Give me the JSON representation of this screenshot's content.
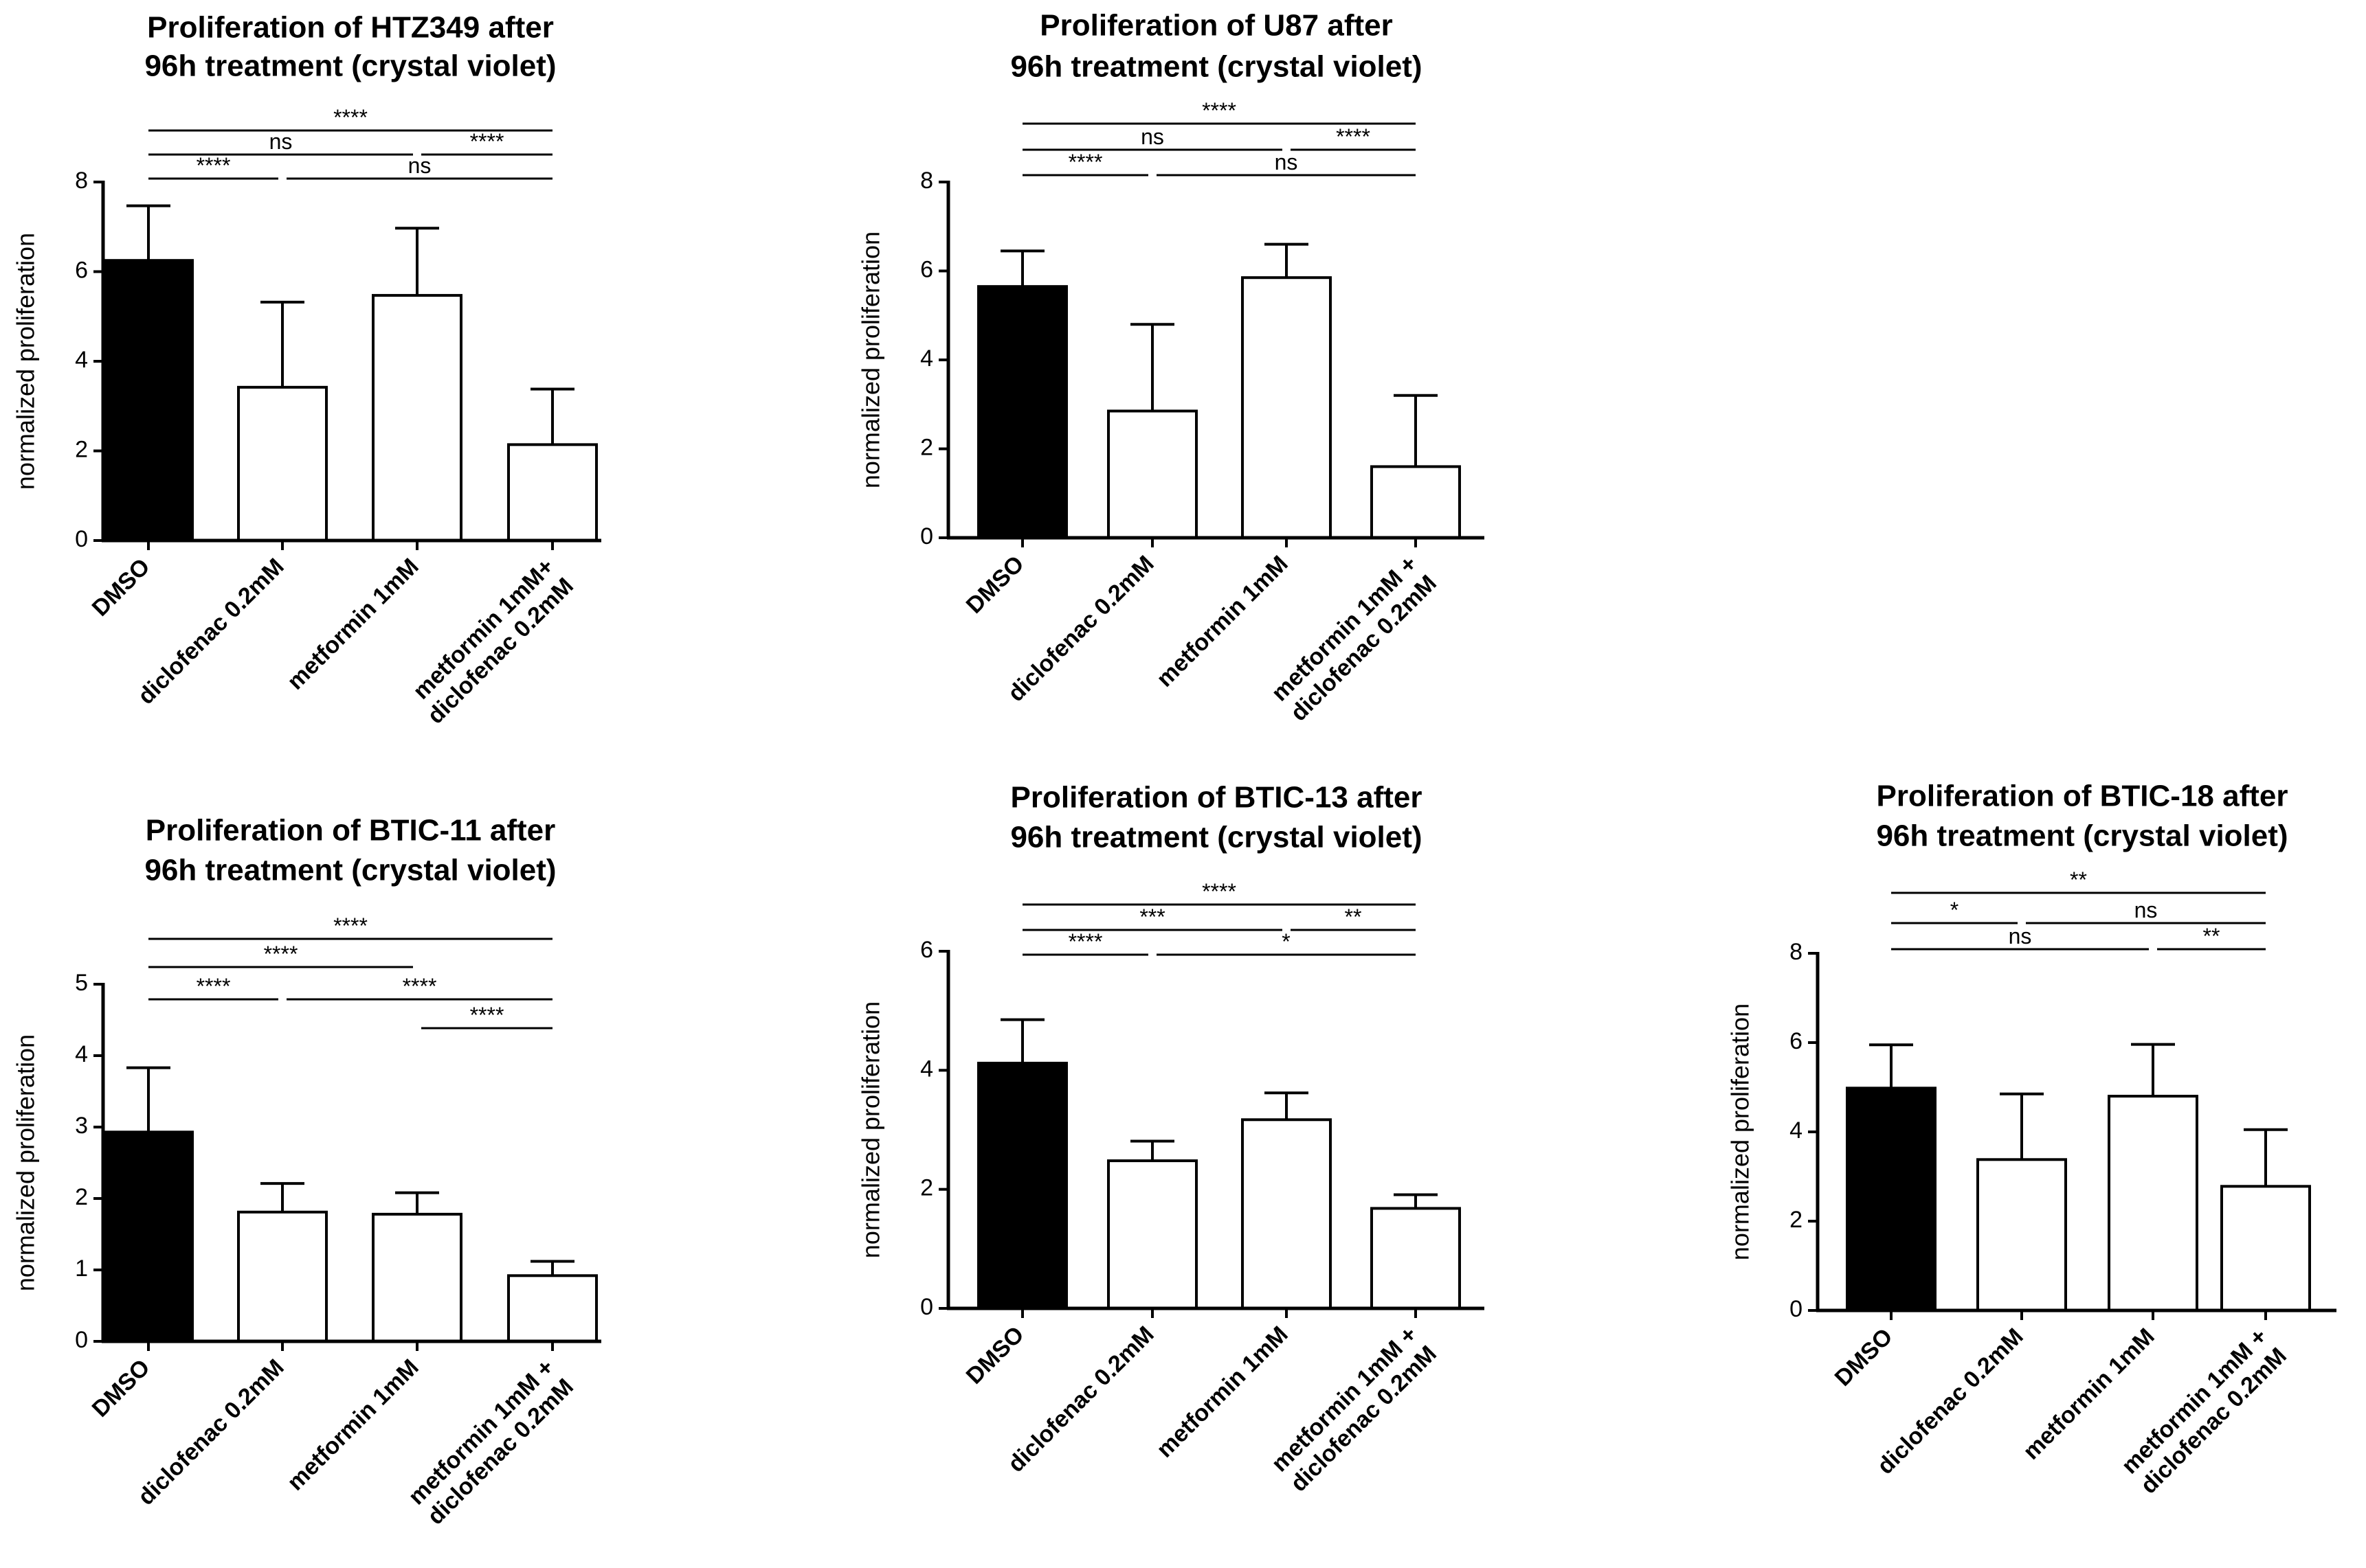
{
  "chart_data": [
    {
      "type": "bar",
      "title": [
        "Proliferation of HTZ349 after",
        "96h treatment (crystal violet)"
      ],
      "ylabel": "normalized proliferation",
      "ylim": [
        0,
        8
      ],
      "yticks": [
        "0",
        "2",
        "4",
        "6",
        "8"
      ],
      "categories": [
        [
          "DMSO"
        ],
        [
          "diclofenac 0.2mM"
        ],
        [
          "metformin 1mM"
        ],
        [
          "metformin 1mM+",
          "diclofenac 0.2mM"
        ]
      ],
      "values": [
        6.25,
        3.42,
        5.47,
        2.14
      ],
      "errors": [
        1.22,
        1.9,
        1.5,
        1.24
      ],
      "fills": [
        "#000000",
        "#ffffff",
        "#ffffff",
        "#ffffff"
      ],
      "significance": [
        {
          "from": 0,
          "to": 3,
          "label": "****",
          "level": 2
        },
        {
          "from": 0,
          "to": 2,
          "label": "ns",
          "level": 1
        },
        {
          "from": 2,
          "to": 3,
          "label": "****",
          "level": 1
        },
        {
          "from": 0,
          "to": 1,
          "label": "****",
          "level": 0
        },
        {
          "from": 1,
          "to": 3,
          "label": "ns",
          "level": 0
        }
      ]
    },
    {
      "type": "bar",
      "title": [
        "Proliferation of U87 after",
        "96h treatment (crystal violet)"
      ],
      "ylabel": "normalized proliferation",
      "ylim": [
        0,
        8
      ],
      "yticks": [
        "0",
        "2",
        "4",
        "6",
        "8"
      ],
      "categories": [
        [
          "DMSO"
        ],
        [
          "diclofenac 0.2mM"
        ],
        [
          "metformin 1mM"
        ],
        [
          "metformin 1mM +",
          "diclofenac 0.2mM"
        ]
      ],
      "values": [
        5.65,
        2.85,
        5.85,
        1.6
      ],
      "errors": [
        0.8,
        1.95,
        0.75,
        1.6
      ],
      "fills": [
        "#000000",
        "#ffffff",
        "#ffffff",
        "#ffffff"
      ],
      "significance": [
        {
          "from": 0,
          "to": 3,
          "label": "****",
          "level": 2
        },
        {
          "from": 0,
          "to": 2,
          "label": "ns",
          "level": 1
        },
        {
          "from": 2,
          "to": 3,
          "label": "****",
          "level": 1
        },
        {
          "from": 0,
          "to": 1,
          "label": "****",
          "level": 0
        },
        {
          "from": 1,
          "to": 3,
          "label": "ns",
          "level": 0
        }
      ]
    },
    {
      "type": "bar",
      "title": [
        "Proliferation of  BTIC-11 after",
        "96h treatment (crystal violet)"
      ],
      "ylabel": "normalized proliferation",
      "ylim": [
        0,
        5
      ],
      "yticks": [
        "0",
        "1",
        "2",
        "3",
        "4",
        "5"
      ],
      "categories": [
        [
          "DMSO"
        ],
        [
          "diclofenac 0.2mM"
        ],
        [
          "metformin 1mM"
        ],
        [
          "metformin 1mM +",
          "diclofenac 0.2mM"
        ]
      ],
      "values": [
        2.93,
        1.81,
        1.78,
        0.92
      ],
      "errors": [
        0.9,
        0.4,
        0.3,
        0.2
      ],
      "fills": [
        "#000000",
        "#ffffff",
        "#ffffff",
        "#ffffff"
      ],
      "significance": [
        {
          "from": 0,
          "to": 3,
          "label": "****",
          "level": 3
        },
        {
          "from": 0,
          "to": 2,
          "label": "****",
          "level": 2
        },
        {
          "from": 0,
          "to": 1,
          "label": "****",
          "level": 1
        },
        {
          "from": 1,
          "to": 3,
          "label": "****",
          "level": 1
        },
        {
          "from": 2,
          "to": 3,
          "label": "****",
          "level": 0
        }
      ]
    },
    {
      "type": "bar",
      "title": [
        "Proliferation of  BTIC-13 after",
        "96h treatment (crystal violet)"
      ],
      "ylabel": "normalized proliferation",
      "ylim": [
        0,
        6
      ],
      "yticks": [
        "0",
        "2",
        "4",
        "6"
      ],
      "categories": [
        [
          "DMSO"
        ],
        [
          "diclofenac 0.2mM"
        ],
        [
          "metformin 1mM"
        ],
        [
          "metformin 1mM +",
          "diclofenac 0.2mM"
        ]
      ],
      "values": [
        4.12,
        2.48,
        3.17,
        1.68
      ],
      "errors": [
        0.73,
        0.33,
        0.45,
        0.23
      ],
      "fills": [
        "#000000",
        "#ffffff",
        "#ffffff",
        "#ffffff"
      ],
      "significance": [
        {
          "from": 0,
          "to": 3,
          "label": "****",
          "level": 2
        },
        {
          "from": 0,
          "to": 2,
          "label": "***",
          "level": 1
        },
        {
          "from": 2,
          "to": 3,
          "label": "**",
          "level": 1
        },
        {
          "from": 0,
          "to": 1,
          "label": "****",
          "level": 0
        },
        {
          "from": 1,
          "to": 3,
          "label": "*",
          "level": 0
        }
      ]
    },
    {
      "type": "bar",
      "title": [
        "Proliferation of BTIC-18 after",
        "96h treatment (crystal violet)"
      ],
      "ylabel": "normalized proliferation",
      "ylim": [
        0,
        8
      ],
      "yticks": [
        "0",
        "2",
        "4",
        "6",
        "8"
      ],
      "categories": [
        [
          "DMSO"
        ],
        [
          "diclofenac 0.2mM"
        ],
        [
          "metformin 1mM"
        ],
        [
          "metformin 1mM +",
          "diclofenac 0.2mM"
        ]
      ],
      "values": [
        4.98,
        3.38,
        4.8,
        2.78
      ],
      "errors": [
        0.97,
        1.47,
        1.16,
        1.27
      ],
      "fills": [
        "#000000",
        "#ffffff",
        "#ffffff",
        "#ffffff"
      ],
      "significance": [
        {
          "from": 0,
          "to": 3,
          "label": "**",
          "level": 2
        },
        {
          "from": 0,
          "to": 1,
          "label": "*",
          "level": 1
        },
        {
          "from": 1,
          "to": 3,
          "label": "ns",
          "level": 1
        },
        {
          "from": 0,
          "to": 2,
          "label": "ns",
          "level": 0
        },
        {
          "from": 2,
          "to": 3,
          "label": "**",
          "level": 0
        }
      ]
    }
  ]
}
